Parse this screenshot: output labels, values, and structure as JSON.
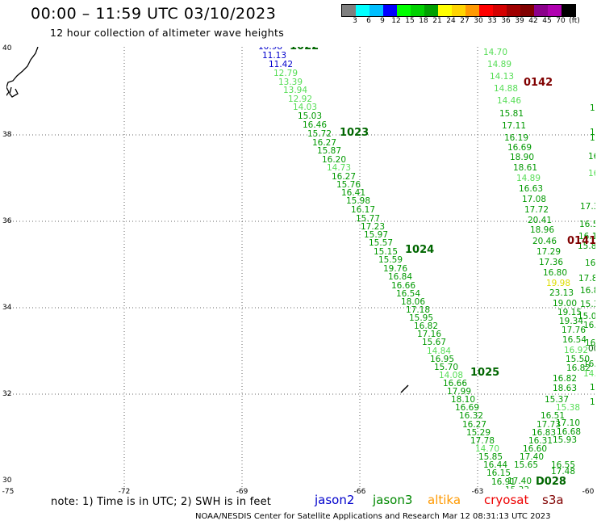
{
  "title": "00:00 – 11:59 UTC 03/10/2023",
  "subtitle": "12 hour collection of altimeter wave heights",
  "colorbar": {
    "colors": [
      "#7f7f7f",
      "#00ffff",
      "#00bfff",
      "#0000ff",
      "#00ff00",
      "#00d100",
      "#00a000",
      "#ffff00",
      "#ffd400",
      "#ff9900",
      "#ff0000",
      "#d40000",
      "#a00000",
      "#800000",
      "#8b008b",
      "#b000b0",
      "#000000"
    ],
    "labels": [
      "3",
      "6",
      "9",
      "12",
      "15",
      "18",
      "21",
      "24",
      "27",
      "30",
      "33",
      "36",
      "39",
      "42",
      "45",
      "70",
      "(ft)"
    ]
  },
  "axes": {
    "lon_labels": [
      "-75",
      "-72",
      "-69",
      "-66",
      "-63",
      "-60"
    ],
    "lat_labels": [
      "40",
      "38",
      "36",
      "34",
      "32",
      "30"
    ]
  },
  "passes": [
    {
      "label": "1022",
      "color": "#006600"
    },
    {
      "label": "1023",
      "color": "#006600"
    },
    {
      "label": "1024",
      "color": "#006600"
    },
    {
      "label": "1025",
      "color": "#006600"
    },
    {
      "label": "0142",
      "color": "#800000"
    },
    {
      "label": "0141",
      "color": "#800000"
    },
    {
      "label": "D028",
      "color": "#006600"
    }
  ],
  "points": {
    "values": [
      "10.98",
      "11.13",
      "11.42",
      "12.79",
      "13.39",
      "13.94",
      "12.92",
      "14.03",
      "15.03",
      "16.46",
      "15.72",
      "16.27",
      "15.87",
      "16.20",
      "14.73",
      "16.27",
      "15.76",
      "16.41",
      "15.98",
      "16.17",
      "15.77",
      "17.23",
      "15.97",
      "15.57",
      "15.15",
      "15.59",
      "19.76",
      "16.84",
      "16.66",
      "16.54",
      "18.06",
      "17.18",
      "15.95",
      "16.82",
      "17.16",
      "15.67",
      "14.84",
      "16.95",
      "15.70",
      "14.08",
      "16.66",
      "17.99",
      "18.10",
      "16.69",
      "16.32",
      "16.27",
      "15.29",
      "17.78",
      "14.70",
      "15.85",
      "16.44",
      "16.15",
      "16.91",
      "17.40",
      "15.33",
      "14.70",
      "14.89",
      "14.13",
      "14.88",
      "14.46",
      "15.81",
      "17.11",
      "16.19",
      "16.69",
      "18.90",
      "18.61",
      "14.89",
      "16.63",
      "17.08",
      "17.72",
      "20.41",
      "18.96",
      "20.46",
      "17.29",
      "17.36",
      "16.80",
      "19.98",
      "23.13",
      "19.00",
      "19.15",
      "19.34",
      "17.76",
      "16.54",
      "16.92",
      "15.50",
      "16.82",
      "16.82",
      "18.63",
      "15.37",
      "15.38",
      "16.51",
      "17.73",
      "17.10",
      "16.68",
      "16.83",
      "16.31",
      "15.93",
      "16.60",
      "17.40",
      "15.65",
      "16.55",
      "17.48",
      "16.34",
      "15.54",
      "16.84",
      "15.54",
      "15.66"
    ]
  },
  "edge_values": [
    "16",
    "15",
    "15.1",
    "16.4",
    "16.9",
    "17.37",
    "16.55",
    "16.15",
    "15.87",
    "16.86",
    "17.8",
    "16.8",
    "15.33",
    "15.00",
    "16.51",
    "16.87",
    "00",
    "16.8",
    "14.7",
    "16.8",
    "15"
  ],
  "note": "note: 1) Time is in UTC; 2) SWH is in feet",
  "satellites": [
    {
      "name": "jason2",
      "color": "#0000cc"
    },
    {
      "name": "jason3",
      "color": "#008800"
    },
    {
      "name": "altika",
      "color": "#ff9900"
    },
    {
      "name": "cryosat",
      "color": "#ee0000"
    },
    {
      "name": "s3a",
      "color": "#800000"
    }
  ],
  "credit": "NOAA/NESDIS Center for Satellite Applications and Research   Mar 12 08:31:13 UTC 2023"
}
